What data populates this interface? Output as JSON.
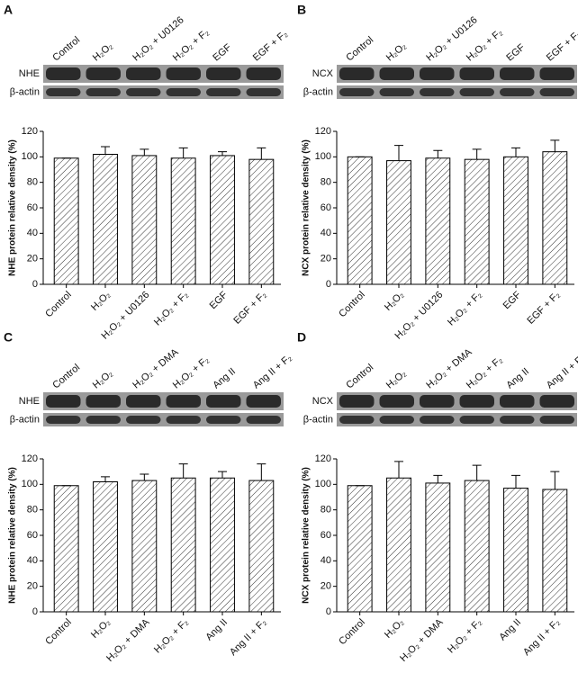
{
  "chart_data": [
    {
      "type": "bar",
      "panel": "A",
      "blot_labels": [
        "NHE",
        "β-actin"
      ],
      "y_label": "NHE protein relative density (%)",
      "categories": [
        "Control",
        "H₂O₂",
        "H₂O₂ + U0126",
        "H₂O₂ + F₂",
        "EGF",
        "EGF + F₂"
      ],
      "values": [
        99,
        102,
        101,
        99,
        101,
        98
      ],
      "errors": [
        0,
        6,
        5,
        8,
        3,
        9
      ],
      "ylim": [
        0,
        120
      ],
      "yticks": [
        0,
        20,
        40,
        60,
        80,
        100,
        120
      ]
    },
    {
      "type": "bar",
      "panel": "B",
      "blot_labels": [
        "NCX",
        "β-actin"
      ],
      "y_label": "NCX protein relative density (%)",
      "categories": [
        "Control",
        "H₂O₂",
        "H₂O₂ + U0126",
        "H₂O₂ + F₂",
        "EGF",
        "EGF + F₂"
      ],
      "values": [
        100,
        97,
        99,
        98,
        100,
        104
      ],
      "errors": [
        0,
        12,
        6,
        8,
        7,
        9
      ],
      "ylim": [
        0,
        120
      ],
      "yticks": [
        0,
        20,
        40,
        60,
        80,
        100,
        120
      ]
    },
    {
      "type": "bar",
      "panel": "C",
      "blot_labels": [
        "NHE",
        "β-actin"
      ],
      "y_label": "NHE protein relative density (%)",
      "categories": [
        "Control",
        "H₂O₂",
        "H₂O₂ + DMA",
        "H₂O₂ + F₂",
        "Ang II",
        "Ang II + F₂"
      ],
      "values": [
        99,
        102,
        103,
        105,
        105,
        103
      ],
      "errors": [
        0,
        4,
        5,
        11,
        5,
        13
      ],
      "ylim": [
        0,
        120
      ],
      "yticks": [
        0,
        20,
        40,
        60,
        80,
        100,
        120
      ]
    },
    {
      "type": "bar",
      "panel": "D",
      "blot_labels": [
        "NCX",
        "β-actin"
      ],
      "y_label": "NCX protein relative density (%)",
      "categories": [
        "Control",
        "H₂O₂",
        "H₂O₂ + DMA",
        "H₂O₂ + F₂",
        "Ang II",
        "Ang II + F₂"
      ],
      "values": [
        99,
        105,
        101,
        103,
        97,
        96
      ],
      "errors": [
        0,
        13,
        6,
        12,
        10,
        14
      ],
      "ylim": [
        0,
        120
      ],
      "yticks": [
        0,
        20,
        40,
        60,
        80,
        100,
        120
      ]
    }
  ]
}
